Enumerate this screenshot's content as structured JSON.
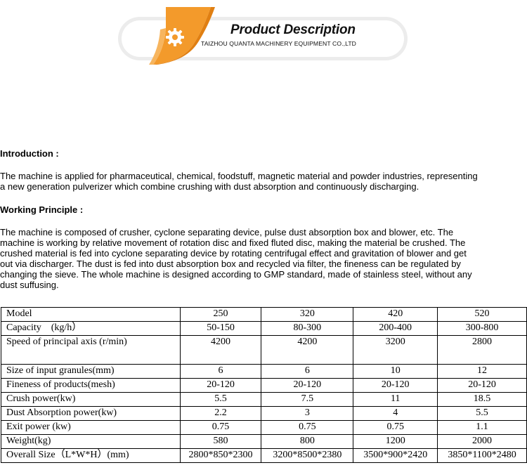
{
  "banner": {
    "title": "Product Description",
    "company": "TAIZHOU QUANTA MACHINERY EQUIPMENT CO.,LTD",
    "icon": "gear-icon",
    "accent": "#f39a2b"
  },
  "introduction": {
    "heading": "Introduction :",
    "line1": "The machine is applied for pharmaceutical, chemical, foodstuff, magnetic material and powder industries, representing",
    "line2": "a new generation pulverizer which combine crushing with dust absorption and continuously discharging."
  },
  "working": {
    "heading": "Working Principle :",
    "line1": "The machine is composed of crusher, cyclone separating device, pulse dust absorption box and blower, etc. The",
    "line2": "machine is working by relative movement of rotation disc and fixed fluted disc, making the material be crushed. The",
    "line3": "crushed material is fed into cyclone separating device by rotating centrifugal effect and gravitation of blower and get",
    "line4": "out via discharger. The dust is fed into dust absorption box and recycled via filter, the fineness can be regulated by",
    "line5": "changing the sieve. The whole machine is designed according to GMP standard, made of stainless steel, without any",
    "line6": "dust suffusing."
  },
  "spec_table": {
    "rows": [
      {
        "label": "Model",
        "values": [
          "250",
          "320",
          "420",
          "520"
        ]
      },
      {
        "label": "Capacity　(kg/h）",
        "values": [
          "50-150",
          "80-300",
          "200-400",
          "300-800"
        ]
      },
      {
        "label": "Speed of principal axis (r/min)",
        "values": [
          "4200",
          "4200",
          "3200",
          "2800"
        ]
      },
      {
        "label": "Size of input granules(mm)",
        "values": [
          "6",
          "6",
          "10",
          "12"
        ]
      },
      {
        "label": "Fineness of products(mesh)",
        "values": [
          "20-120",
          "20-120",
          "20-120",
          "20-120"
        ]
      },
      {
        "label": "Crush power(kw)",
        "values": [
          "5.5",
          "7.5",
          "11",
          "18.5"
        ]
      },
      {
        "label": "Dust Absorption power(kw)",
        "values": [
          "2.2",
          "3",
          "4",
          "5.5"
        ]
      },
      {
        "label": "Exit power (kw)",
        "values": [
          "0.75",
          "0.75",
          "0.75",
          "1.1"
        ]
      },
      {
        "label": "Weight(kg)",
        "values": [
          "580",
          "800",
          "1200",
          "2000"
        ]
      },
      {
        "label": "Overall Size（L*W*H）(mm)",
        "values": [
          "2800*850*2300",
          "3200*8500*2380",
          "3500*900*2420",
          "3850*1100*2480"
        ]
      }
    ]
  }
}
